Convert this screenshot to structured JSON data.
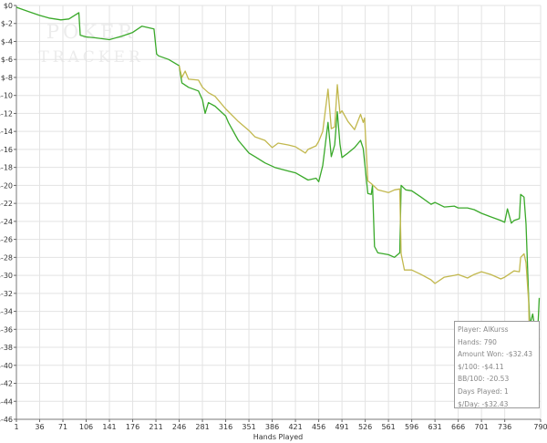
{
  "chart_data": {
    "type": "line",
    "xlabel": "Hands Played",
    "ylabel": "",
    "xlim": [
      1,
      790
    ],
    "ylim": [
      -46,
      0
    ],
    "x_ticks": [
      "1",
      "36",
      "71",
      "106",
      "141",
      "176",
      "211",
      "246",
      "281",
      "316",
      "351",
      "386",
      "421",
      "456",
      "491",
      "526",
      "561",
      "596",
      "631",
      "666",
      "701",
      "736",
      "790"
    ],
    "y_ticks": [
      "$0",
      "$-2",
      "$-4",
      "$-6",
      "$-8",
      "$-10",
      "$-12",
      "$-14",
      "$-16",
      "$-18",
      "$-20",
      "$-22",
      "$-24",
      "$-26",
      "$-28",
      "$-30",
      "$-32",
      "$-34",
      "$-36",
      "$-38",
      "$-40",
      "$-42",
      "$-44",
      "$-46"
    ],
    "grid": true,
    "series": [
      {
        "color": "#3aa92a",
        "points": [
          [
            1,
            -0.2
          ],
          [
            20,
            -0.7
          ],
          [
            36,
            -1.1
          ],
          [
            50,
            -1.4
          ],
          [
            68,
            -1.6
          ],
          [
            80,
            -1.5
          ],
          [
            95,
            -0.8
          ],
          [
            97,
            -3.3
          ],
          [
            106,
            -3.5
          ],
          [
            120,
            -3.6
          ],
          [
            141,
            -3.8
          ],
          [
            160,
            -3.4
          ],
          [
            176,
            -3.0
          ],
          [
            190,
            -2.3
          ],
          [
            208,
            -2.6
          ],
          [
            212,
            -5.4
          ],
          [
            215,
            -5.6
          ],
          [
            230,
            -6.0
          ],
          [
            246,
            -6.7
          ],
          [
            250,
            -8.6
          ],
          [
            260,
            -9.1
          ],
          [
            275,
            -9.5
          ],
          [
            281,
            -10.5
          ],
          [
            285,
            -12.0
          ],
          [
            290,
            -10.8
          ],
          [
            300,
            -11.2
          ],
          [
            316,
            -12.3
          ],
          [
            320,
            -13.0
          ],
          [
            335,
            -15.0
          ],
          [
            351,
            -16.4
          ],
          [
            360,
            -16.8
          ],
          [
            375,
            -17.5
          ],
          [
            390,
            -18.0
          ],
          [
            410,
            -18.4
          ],
          [
            421,
            -18.6
          ],
          [
            440,
            -19.4
          ],
          [
            452,
            -19.2
          ],
          [
            456,
            -19.6
          ],
          [
            462,
            -17.8
          ],
          [
            470,
            -13.0
          ],
          [
            475,
            -16.8
          ],
          [
            480,
            -15.5
          ],
          [
            484,
            -11.8
          ],
          [
            488,
            -15.4
          ],
          [
            491,
            -16.9
          ],
          [
            500,
            -16.4
          ],
          [
            510,
            -15.8
          ],
          [
            519,
            -15.0
          ],
          [
            523,
            -15.9
          ],
          [
            530,
            -20.9
          ],
          [
            535,
            -21.0
          ],
          [
            537,
            -20.0
          ],
          [
            540,
            -26.8
          ],
          [
            545,
            -27.5
          ],
          [
            561,
            -27.7
          ],
          [
            570,
            -28.0
          ],
          [
            578,
            -27.5
          ],
          [
            580,
            -20.0
          ],
          [
            587,
            -20.5
          ],
          [
            596,
            -20.6
          ],
          [
            610,
            -21.3
          ],
          [
            625,
            -22.1
          ],
          [
            631,
            -21.9
          ],
          [
            645,
            -22.4
          ],
          [
            660,
            -22.3
          ],
          [
            666,
            -22.5
          ],
          [
            680,
            -22.5
          ],
          [
            690,
            -22.7
          ],
          [
            701,
            -23.1
          ],
          [
            715,
            -23.5
          ],
          [
            730,
            -23.9
          ],
          [
            736,
            -24.1
          ],
          [
            740,
            -22.6
          ],
          [
            746,
            -24.2
          ],
          [
            750,
            -23.9
          ],
          [
            758,
            -23.7
          ],
          [
            760,
            -21.0
          ],
          [
            765,
            -21.3
          ],
          [
            768,
            -24.3
          ],
          [
            772,
            -32.6
          ],
          [
            774,
            -35.5
          ],
          [
            778,
            -34.3
          ],
          [
            782,
            -36.2
          ],
          [
            786,
            -35.6
          ],
          [
            788,
            -32.5
          ]
        ]
      },
      {
        "color": "#c2b84e",
        "points": [
          [
            246,
            -6.7
          ],
          [
            250,
            -8.0
          ],
          [
            255,
            -7.3
          ],
          [
            260,
            -8.2
          ],
          [
            275,
            -8.3
          ],
          [
            281,
            -9.1
          ],
          [
            290,
            -9.7
          ],
          [
            300,
            -10.1
          ],
          [
            316,
            -11.5
          ],
          [
            335,
            -12.9
          ],
          [
            351,
            -13.9
          ],
          [
            360,
            -14.6
          ],
          [
            375,
            -15.0
          ],
          [
            386,
            -15.8
          ],
          [
            395,
            -15.3
          ],
          [
            410,
            -15.5
          ],
          [
            421,
            -15.7
          ],
          [
            436,
            -16.4
          ],
          [
            440,
            -16.0
          ],
          [
            452,
            -15.6
          ],
          [
            456,
            -15.1
          ],
          [
            462,
            -14.0
          ],
          [
            470,
            -9.3
          ],
          [
            475,
            -13.7
          ],
          [
            480,
            -13.5
          ],
          [
            484,
            -8.8
          ],
          [
            488,
            -12.0
          ],
          [
            491,
            -11.7
          ],
          [
            500,
            -12.9
          ],
          [
            510,
            -13.8
          ],
          [
            519,
            -12.1
          ],
          [
            523,
            -13.0
          ],
          [
            525,
            -12.5
          ],
          [
            530,
            -19.5
          ],
          [
            535,
            -19.8
          ],
          [
            541,
            -20.2
          ],
          [
            545,
            -20.5
          ],
          [
            561,
            -20.8
          ],
          [
            570,
            -20.5
          ],
          [
            578,
            -20.4
          ],
          [
            580,
            -27.6
          ],
          [
            585,
            -29.4
          ],
          [
            596,
            -29.4
          ],
          [
            610,
            -29.9
          ],
          [
            625,
            -30.5
          ],
          [
            631,
            -30.9
          ],
          [
            645,
            -30.2
          ],
          [
            660,
            -30.0
          ],
          [
            666,
            -29.9
          ],
          [
            680,
            -30.3
          ],
          [
            690,
            -29.9
          ],
          [
            701,
            -29.6
          ],
          [
            715,
            -29.9
          ],
          [
            730,
            -30.4
          ],
          [
            736,
            -30.2
          ],
          [
            750,
            -29.5
          ],
          [
            758,
            -29.6
          ],
          [
            760,
            -28.0
          ],
          [
            765,
            -27.6
          ],
          [
            768,
            -28.6
          ],
          [
            772,
            -33.0
          ],
          [
            774,
            -39.9
          ],
          [
            778,
            -39.8
          ],
          [
            782,
            -38.3
          ],
          [
            785,
            -39.5
          ],
          [
            788,
            -37.0
          ]
        ]
      }
    ]
  },
  "watermark": {
    "line1": "POKER",
    "line2": "TRACKER"
  },
  "stats": {
    "player": "Player: AlKurss",
    "hands": "Hands: 790",
    "amount_won": "Amount Won: -$32.43",
    "per_100": "$/100: -$4.11",
    "bb_per_100": "BB/100: -20.53",
    "days_played": "Days Played: 1",
    "per_day": "$/Day: -$32.43"
  }
}
